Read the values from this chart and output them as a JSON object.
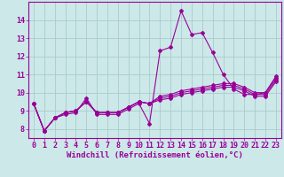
{
  "title": "",
  "xlabel": "Windchill (Refroidissement éolien,°C)",
  "ylabel": "",
  "bg_color": "#cce8e8",
  "grid_color": "#aacccc",
  "line_color": "#990099",
  "x_values": [
    0,
    1,
    2,
    3,
    4,
    5,
    6,
    7,
    8,
    9,
    10,
    11,
    12,
    13,
    14,
    15,
    16,
    17,
    18,
    19,
    20,
    21,
    22,
    23
  ],
  "series": [
    [
      9.4,
      7.9,
      8.6,
      8.8,
      8.9,
      9.7,
      8.8,
      8.8,
      8.8,
      9.1,
      9.4,
      8.3,
      12.3,
      12.5,
      14.5,
      13.2,
      13.3,
      12.2,
      11.0,
      10.2,
      9.9,
      9.9,
      10.0,
      10.9
    ],
    [
      9.4,
      7.9,
      8.6,
      8.9,
      9.0,
      9.5,
      8.9,
      8.9,
      8.9,
      9.2,
      9.5,
      9.4,
      9.8,
      9.9,
      10.1,
      10.2,
      10.3,
      10.4,
      10.5,
      10.5,
      10.3,
      10.0,
      10.0,
      10.8
    ],
    [
      9.4,
      7.9,
      8.6,
      8.9,
      9.0,
      9.5,
      8.9,
      8.9,
      8.9,
      9.2,
      9.5,
      9.4,
      9.7,
      9.8,
      10.0,
      10.1,
      10.2,
      10.3,
      10.4,
      10.4,
      10.2,
      9.9,
      9.9,
      10.7
    ],
    [
      9.4,
      7.9,
      8.6,
      8.9,
      9.0,
      9.5,
      8.9,
      8.9,
      8.9,
      9.2,
      9.5,
      9.4,
      9.6,
      9.7,
      9.9,
      10.0,
      10.1,
      10.2,
      10.3,
      10.3,
      10.1,
      9.8,
      9.8,
      10.6
    ]
  ],
  "ylim": [
    7.5,
    15.0
  ],
  "xlim": [
    -0.5,
    23.5
  ],
  "yticks": [
    8,
    9,
    10,
    11,
    12,
    13,
    14
  ],
  "xticks": [
    0,
    1,
    2,
    3,
    4,
    5,
    6,
    7,
    8,
    9,
    10,
    11,
    12,
    13,
    14,
    15,
    16,
    17,
    18,
    19,
    20,
    21,
    22,
    23
  ],
  "xlabel_fontsize": 6.5,
  "tick_fontsize": 6,
  "marker": "D",
  "markersize": 2.0,
  "linewidth": 0.8
}
